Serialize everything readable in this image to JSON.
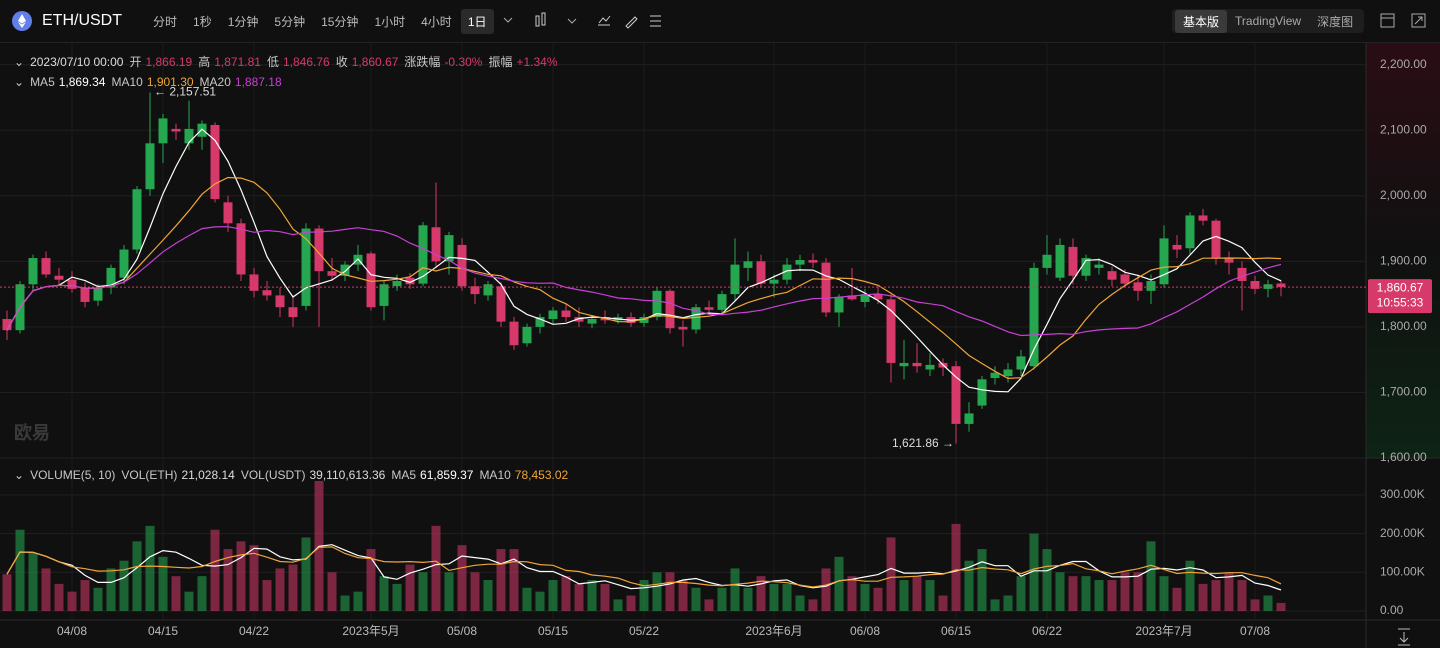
{
  "toolbar": {
    "symbol": "ETH/USDT",
    "intervals": [
      "分时",
      "1秒",
      "1分钟",
      "5分钟",
      "15分钟",
      "1小时",
      "4小时",
      "1日"
    ],
    "selected_interval": "1日",
    "views": [
      "基本版",
      "TradingView",
      "深度图"
    ],
    "selected_view": "基本版"
  },
  "watermark": "欧易",
  "chart_data": {
    "type": "candlestick",
    "categories": [
      null,
      null,
      null,
      null,
      null,
      "04/08",
      null,
      null,
      null,
      null,
      null,
      null,
      "04/15",
      null,
      null,
      null,
      null,
      null,
      null,
      "04/22",
      null,
      null,
      null,
      null,
      null,
      null,
      null,
      null,
      "2023年5月",
      null,
      null,
      null,
      null,
      null,
      null,
      "05/08",
      null,
      null,
      null,
      null,
      null,
      null,
      "05/15",
      null,
      null,
      null,
      null,
      null,
      null,
      "05/22",
      null,
      null,
      null,
      null,
      null,
      null,
      null,
      null,
      null,
      "2023年6月",
      null,
      null,
      null,
      null,
      null,
      null,
      "06/08",
      null,
      null,
      null,
      null,
      null,
      null,
      "06/15",
      null,
      null,
      null,
      null,
      null,
      null,
      "06/22",
      null,
      null,
      null,
      null,
      null,
      null,
      null,
      null,
      "2023年7月",
      null,
      null,
      null,
      null,
      null,
      null,
      "07/08",
      null,
      null
    ],
    "open": [
      1812,
      1795,
      1865,
      1905,
      1878,
      1872,
      1860,
      1840,
      1860,
      1875,
      1918,
      2010,
      2080,
      2102,
      2080,
      2090,
      2108,
      1990,
      1958,
      1880,
      1856,
      1848,
      1830,
      1832,
      1950,
      1885,
      1878,
      1895,
      1912,
      1832,
      1862,
      1875,
      1866,
      1952,
      1900,
      1925,
      1862,
      1848,
      1862,
      1808,
      1775,
      1800,
      1812,
      1825,
      1815,
      1805,
      1815,
      1810,
      1815,
      1806,
      1815,
      1855,
      1800,
      1796,
      1830,
      1826,
      1850,
      1890,
      1900,
      1866,
      1872,
      1895,
      1902,
      1898,
      1822,
      1848,
      1838,
      1850,
      1842,
      1740,
      1745,
      1735,
      1745,
      1740,
      1652,
      1680,
      1722,
      1725,
      1735,
      1740,
      1890,
      1875,
      1922,
      1878,
      1890,
      1885,
      1880,
      1868,
      1855,
      1865,
      1925,
      1920,
      1970,
      1962,
      1905,
      1890,
      1870,
      1858,
      1866.19
    ],
    "high": [
      1825,
      1870,
      1910,
      1915,
      1890,
      1885,
      1868,
      1865,
      1895,
      1925,
      2015,
      2157.51,
      2125,
      2110,
      2145,
      2115,
      2112,
      2000,
      1965,
      1890,
      1870,
      1860,
      1848,
      1958,
      1955,
      1905,
      1900,
      1925,
      1915,
      1870,
      1880,
      1882,
      1960,
      2020,
      1945,
      1935,
      1875,
      1870,
      1868,
      1815,
      1805,
      1820,
      1830,
      1835,
      1830,
      1818,
      1825,
      1820,
      1822,
      1820,
      1860,
      1858,
      1810,
      1835,
      1840,
      1855,
      1935,
      1915,
      1910,
      1880,
      1905,
      1910,
      1912,
      1905,
      1850,
      1890,
      1858,
      1862,
      1850,
      1780,
      1775,
      1760,
      1752,
      1748,
      1685,
      1725,
      1740,
      1745,
      1765,
      1898,
      1940,
      1935,
      1935,
      1910,
      1905,
      1892,
      1888,
      1880,
      1880,
      1955,
      1940,
      1975,
      1980,
      1965,
      1915,
      1900,
      1878,
      1872,
      1871.81
    ],
    "low": [
      1780,
      1790,
      1855,
      1875,
      1862,
      1852,
      1830,
      1832,
      1850,
      1865,
      1912,
      2000,
      2050,
      2085,
      2070,
      2070,
      1990,
      1945,
      1870,
      1845,
      1840,
      1815,
      1800,
      1825,
      1800,
      1870,
      1870,
      1885,
      1825,
      1810,
      1855,
      1858,
      1862,
      1890,
      1880,
      1855,
      1835,
      1840,
      1800,
      1765,
      1770,
      1790,
      1805,
      1808,
      1800,
      1798,
      1805,
      1805,
      1800,
      1800,
      1810,
      1790,
      1770,
      1790,
      1822,
      1820,
      1840,
      1870,
      1860,
      1845,
      1865,
      1885,
      1890,
      1815,
      1800,
      1840,
      1830,
      1835,
      1715,
      1720,
      1730,
      1725,
      1725,
      1621.86,
      1640,
      1675,
      1712,
      1715,
      1725,
      1735,
      1880,
      1870,
      1865,
      1870,
      1880,
      1862,
      1860,
      1840,
      1835,
      1860,
      1905,
      1910,
      1955,
      1895,
      1880,
      1825,
      1850,
      1845,
      1846.76
    ],
    "close": [
      1795,
      1865,
      1905,
      1880,
      1872,
      1858,
      1838,
      1860,
      1890,
      1918,
      2010,
      2080,
      2118,
      2098,
      2102,
      2110,
      1995,
      1958,
      1880,
      1855,
      1848,
      1830,
      1815,
      1950,
      1885,
      1878,
      1895,
      1910,
      1830,
      1865,
      1870,
      1865,
      1955,
      1900,
      1940,
      1862,
      1850,
      1865,
      1808,
      1772,
      1800,
      1815,
      1825,
      1815,
      1808,
      1812,
      1810,
      1815,
      1806,
      1815,
      1855,
      1798,
      1796,
      1830,
      1826,
      1850,
      1895,
      1900,
      1866,
      1872,
      1895,
      1902,
      1898,
      1822,
      1845,
      1842,
      1850,
      1842,
      1745,
      1745,
      1740,
      1742,
      1738,
      1652,
      1668,
      1720,
      1730,
      1735,
      1755,
      1890,
      1910,
      1925,
      1878,
      1905,
      1895,
      1872,
      1866,
      1855,
      1870,
      1935,
      1918,
      1970,
      1962,
      1905,
      1898,
      1870,
      1858,
      1865,
      1860.67
    ],
    "volume": [
      95,
      210,
      150,
      110,
      70,
      50,
      80,
      60,
      110,
      130,
      180,
      220,
      140,
      90,
      50,
      90,
      210,
      160,
      180,
      170,
      80,
      110,
      120,
      190,
      336,
      100,
      40,
      50,
      160,
      90,
      70,
      120,
      100,
      220,
      100,
      170,
      100,
      80,
      160,
      160,
      60,
      50,
      80,
      90,
      70,
      80,
      70,
      30,
      40,
      80,
      100,
      100,
      80,
      60,
      30,
      60,
      110,
      60,
      90,
      70,
      70,
      40,
      30,
      110,
      140,
      90,
      70,
      60,
      190,
      80,
      90,
      80,
      40,
      225,
      130,
      160,
      30,
      40,
      90,
      200,
      160,
      100,
      90,
      90,
      80,
      80,
      100,
      100,
      180,
      90,
      60,
      130,
      70,
      80,
      100,
      80,
      30,
      40,
      21.03
    ],
    "up_color": "#25a750",
    "down_color": "#d6396a",
    "ylim": [
      1600,
      2230
    ],
    "yticks": [
      {
        "value": 1600,
        "label": "1,600.00"
      },
      {
        "value": 1700,
        "label": "1,700.00"
      },
      {
        "value": 1800,
        "label": "1,800.00"
      },
      {
        "value": 1900,
        "label": "1,900.00"
      },
      {
        "value": 2000,
        "label": "2,000.00"
      },
      {
        "value": 2100,
        "label": "2,100.00"
      },
      {
        "value": 2200,
        "label": "2,200.00"
      }
    ],
    "volume_ylim": [
      0,
      385
    ],
    "volume_yticks": [
      {
        "value": 0,
        "label": "0.00"
      },
      {
        "value": 100,
        "label": "100.00K"
      },
      {
        "value": 200,
        "label": "200.00K"
      },
      {
        "value": 300,
        "label": "300.00K"
      }
    ],
    "last_price_label": "1,860.67",
    "countdown": "10:55:33",
    "info": {
      "date": "2023/07/10 00:00",
      "items": [
        {
          "label": "开",
          "value": "1,866.19"
        },
        {
          "label": "高",
          "value": "1,871.81"
        },
        {
          "label": "低",
          "value": "1,846.76"
        },
        {
          "label": "收",
          "value": "1,860.67"
        },
        {
          "label": "涨跌幅",
          "value": "-0.30%"
        },
        {
          "label": "振幅",
          "value": "+1.34%"
        }
      ]
    },
    "ma": [
      {
        "name": "MA5",
        "period": 5,
        "value": "1,869.34",
        "color": "#ffffff"
      },
      {
        "name": "MA10",
        "period": 10,
        "value": "1,901.30",
        "color": "#f0a637"
      },
      {
        "name": "MA20",
        "period": 20,
        "value": "1,887.18",
        "color": "#c93fd6"
      }
    ],
    "volume_legend": {
      "title": "VOLUME(5, 10)",
      "items": [
        {
          "label": "VOL(ETH)",
          "value": "21,028.14"
        },
        {
          "label": "VOL(USDT)",
          "value": "39,110,613.36"
        }
      ],
      "ma": [
        {
          "name": "MA5",
          "period": 5,
          "value": "61,859.37",
          "color": "#ffffff"
        },
        {
          "name": "MA10",
          "period": 10,
          "value": "78,453.02",
          "color": "#f0a637"
        }
      ]
    },
    "annotations": {
      "high": "← 2,157.51",
      "low": "1,621.86 →"
    }
  }
}
